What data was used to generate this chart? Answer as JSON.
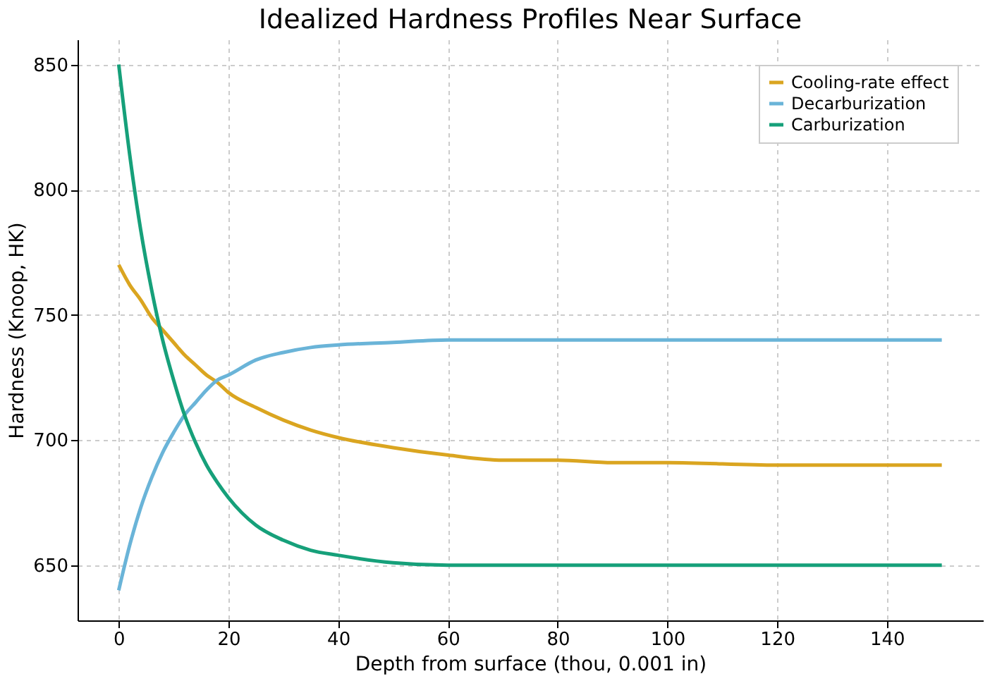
{
  "chart_data": {
    "type": "line",
    "title": "Idealized Hardness Profiles Near Surface",
    "xlabel": "Depth from surface (thou, 0.001 in)",
    "ylabel": "Hardness (Knoop, HK)",
    "x": [
      0,
      2,
      4,
      6,
      8,
      10,
      12,
      14,
      16,
      18,
      20,
      25,
      30,
      35,
      40,
      50,
      60,
      70,
      80,
      90,
      100,
      120,
      150
    ],
    "series": [
      {
        "name": "Cooling-rate effect",
        "color": "#daa520",
        "values": [
          770,
          762,
          756,
          749,
          744,
          739,
          734,
          730,
          726,
          723,
          719,
          713,
          708,
          704,
          701,
          697,
          694,
          692,
          692,
          691,
          691,
          690,
          690
        ]
      },
      {
        "name": "Decarburization",
        "color": "#6ab4d8",
        "values": [
          640,
          658,
          673,
          685,
          695,
          703,
          710,
          715,
          720,
          724,
          726,
          732,
          735,
          737,
          738,
          739,
          740,
          740,
          740,
          740,
          740,
          740,
          740
        ]
      },
      {
        "name": "Carburization",
        "color": "#16a07a",
        "values": [
          850,
          814,
          784,
          760,
          740,
          724,
          710,
          699,
          690,
          683,
          677,
          666,
          660,
          656,
          654,
          651,
          650,
          650,
          650,
          650,
          650,
          650,
          650
        ]
      }
    ],
    "xlim": [
      -7.5,
      157.5
    ],
    "ylim": [
      628,
      860
    ],
    "xticks": [
      0,
      20,
      40,
      60,
      80,
      100,
      120,
      140
    ],
    "yticks": [
      650,
      700,
      750,
      800,
      850
    ],
    "grid": true,
    "legend": "top right",
    "marker": "none",
    "line_style": "solid"
  }
}
